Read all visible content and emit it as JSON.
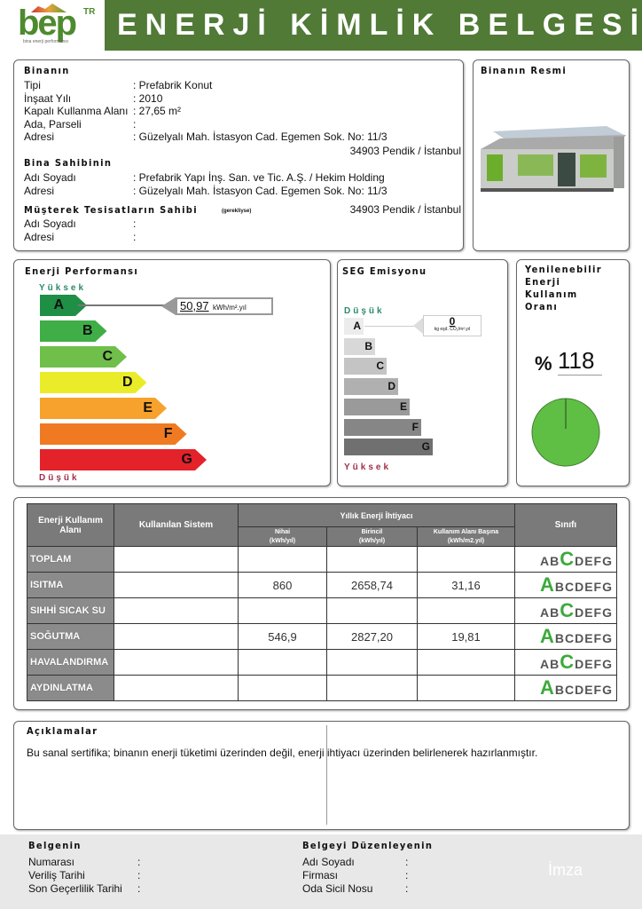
{
  "header": {
    "logo_text": "bep",
    "logo_sup": "TR",
    "logo_sub": "bina enerji performansı",
    "title": "ENERJİ KİMLİK BELGESİ",
    "color": "#507a36"
  },
  "building": {
    "section_title": "Binanın",
    "rows": [
      {
        "label": "Tipi",
        "value": ": Prefabrik Konut"
      },
      {
        "label": "İnşaat Yılı",
        "value": ": 2010"
      },
      {
        "label": "Kapalı Kullanma Alanı",
        "value": ": 27,65 m²"
      },
      {
        "label": "Ada, Parseli",
        "value": ":"
      },
      {
        "label": "Adresi",
        "value": ": Güzelyalı Mah. İstasyon Cad. Egemen Sok. No: 11/3"
      }
    ],
    "address_line2": "34903 Pendik / İstanbul",
    "owner_title": "Bina Sahibinin",
    "owner_rows": [
      {
        "label": "Adı Soyadı",
        "value": ": Prefabrik Yapı İnş. San. ve Tic. A.Ş. / Hekim Holding"
      },
      {
        "label": "Adresi",
        "value": ": Güzelyalı Mah. İstasyon Cad. Egemen Sok. No: 11/3"
      }
    ],
    "owner_address_line2": "34903 Pendik / İstanbul",
    "shared_title": "Müşterek Tesisatların Sahibi",
    "shared_note": "(gerekliyse)",
    "shared_rows": [
      {
        "label": "Adı Soyadı",
        "value": ":"
      },
      {
        "label": "Adresi",
        "value": ":"
      }
    ]
  },
  "picture": {
    "title": "Binanın Resmi"
  },
  "energy": {
    "title": "Enerji Performansı",
    "top_label": "Yüksek",
    "bottom_label": "Düşük",
    "value": "50,97",
    "unit": "kWh/m².yıl",
    "rating": "A",
    "classes": [
      {
        "l": "A",
        "c": "#1e8f45"
      },
      {
        "l": "B",
        "c": "#3fae47"
      },
      {
        "l": "C",
        "c": "#6fbf4a"
      },
      {
        "l": "D",
        "c": "#eaec2a"
      },
      {
        "l": "E",
        "c": "#f7a22c"
      },
      {
        "l": "F",
        "c": "#f07a22"
      },
      {
        "l": "G",
        "c": "#e3222a"
      }
    ]
  },
  "seg": {
    "title": "SEG Emisyonu",
    "top_label": "Düşük",
    "bottom_label": "Yüksek",
    "value": "0",
    "unit": "kg eşd. CO₂/m².yıl",
    "rating": "A",
    "classes": [
      {
        "l": "A",
        "c": "#ececec"
      },
      {
        "l": "B",
        "c": "#d8d8d8"
      },
      {
        "l": "C",
        "c": "#c4c4c4"
      },
      {
        "l": "D",
        "c": "#b0b0b0"
      },
      {
        "l": "E",
        "c": "#9a9a9a"
      },
      {
        "l": "F",
        "c": "#868686"
      },
      {
        "l": "G",
        "c": "#707070"
      }
    ]
  },
  "renewable": {
    "title_lines": [
      "Yenilenebilir",
      "Enerji",
      "Kullanım",
      "Oranı"
    ],
    "percent_sign": "%",
    "value": "118",
    "pie_color": "#5fbf45"
  },
  "table": {
    "h_area": "Enerji Kullanım Alanı",
    "h_system": "Kullanılan Sistem",
    "h_annual": "Yıllık Enerji İhtiyacı",
    "h_class": "Sınıfı",
    "h_final": "Nihai",
    "h_final_u": "(kWh/yıl)",
    "h_primary": "Birincil",
    "h_primary_u": "(kWh/yıl)",
    "h_per": "Kullanım Alanı Başına",
    "h_per_u": "(kWh/m2.yıl)",
    "letters": [
      "A",
      "B",
      "C",
      "D",
      "E",
      "F",
      "G"
    ],
    "rows": [
      {
        "area": "TOPLAM",
        "system": "",
        "final": "",
        "primary": "",
        "per": "",
        "class": "C"
      },
      {
        "area": "ISITMA",
        "system": "",
        "final": "860",
        "primary": "2658,74",
        "per": "31,16",
        "class": "A"
      },
      {
        "area": "SIHHİ SICAK SU",
        "system": "",
        "final": "",
        "primary": "",
        "per": "",
        "class": "C"
      },
      {
        "area": "SOĞUTMA",
        "system": "",
        "final": "546,9",
        "primary": "2827,20",
        "per": "19,81",
        "class": "A"
      },
      {
        "area": "HAVALANDIRMA",
        "system": "",
        "final": "",
        "primary": "",
        "per": "",
        "class": "C"
      },
      {
        "area": "AYDINLATMA",
        "system": "",
        "final": "",
        "primary": "",
        "per": "",
        "class": "A"
      }
    ]
  },
  "notes": {
    "title": "Açıklamalar",
    "text": "Bu sanal sertifika; binanın enerji tüketimi üzerinden değil, enerji ihtiyacı üzerinden belirlenerek hazırlanmıştır."
  },
  "footer": {
    "doc_title": "Belgenin",
    "doc_rows": [
      {
        "label": "Numarası",
        "value": ":"
      },
      {
        "label": "Veriliş Tarihi",
        "value": ":"
      },
      {
        "label": "Son Geçerlilik Tarihi",
        "value": ":"
      }
    ],
    "issuer_title": "Belgeyi Düzenleyenin",
    "issuer_rows": [
      {
        "label": "Adı Soyadı",
        "value": ":"
      },
      {
        "label": "Firması",
        "value": ":"
      },
      {
        "label": "Oda Sicil Nosu",
        "value": ":"
      }
    ],
    "signature": "İmza"
  }
}
